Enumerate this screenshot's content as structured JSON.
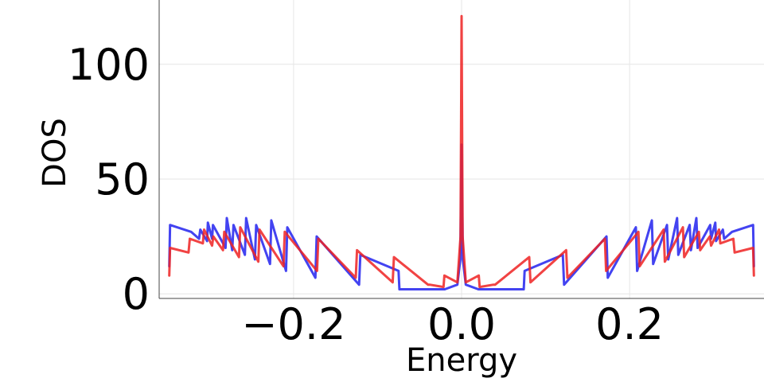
{
  "chart_data": {
    "type": "line",
    "title": "",
    "xlabel": "Energy",
    "ylabel": "DOS",
    "xlim": [
      -0.36,
      0.36
    ],
    "ylim": [
      -2,
      128
    ],
    "xticks": [
      -0.2,
      0.0,
      0.2
    ],
    "xtick_labels": [
      "−0.2",
      "0.0",
      "0.2"
    ],
    "yticks": [
      0,
      50,
      100
    ],
    "ytick_labels": [
      "0",
      "50",
      "100"
    ],
    "grid": true,
    "legend": "none",
    "colors": {
      "series_a": "#2222ee",
      "series_b": "#ee2222"
    },
    "series": [
      {
        "color": "#2222ee",
        "x": [
          -0.348,
          -0.347,
          -0.322,
          -0.3125,
          -0.311,
          -0.303,
          -0.302,
          -0.297,
          -0.296,
          -0.281,
          -0.2795,
          -0.273,
          -0.2715,
          -0.258,
          -0.2565,
          -0.246,
          -0.2445,
          -0.228,
          -0.2265,
          -0.209,
          -0.2075,
          -0.174,
          -0.1725,
          -0.122,
          -0.1205,
          -0.075,
          -0.074,
          -0.0735,
          -0.02,
          -0.005,
          -0.0015,
          0.0,
          0.0015,
          0.005,
          0.02,
          0.0735,
          0.074,
          0.075,
          0.1205,
          0.122,
          0.1725,
          0.174,
          0.2075,
          0.209,
          0.2265,
          0.228,
          0.2445,
          0.246,
          0.2565,
          0.258,
          0.2715,
          0.273,
          0.2795,
          0.281,
          0.296,
          0.297,
          0.302,
          0.303,
          0.311,
          0.3125,
          0.322,
          0.347,
          0.348
        ],
        "y": [
          12,
          30,
          27,
          24,
          28,
          23,
          31,
          24,
          30,
          20,
          33,
          19,
          30,
          17,
          33,
          15,
          30,
          13,
          32,
          10,
          29,
          7,
          25,
          4,
          17,
          10,
          2,
          2,
          2,
          4,
          15,
          65,
          15,
          4,
          2,
          2,
          2,
          10,
          17,
          4,
          25,
          7,
          29,
          10,
          32,
          13,
          30,
          15,
          33,
          17,
          30,
          19,
          33,
          20,
          30,
          24,
          31,
          23,
          28,
          24,
          27,
          30,
          12
        ]
      },
      {
        "color": "#ee2222",
        "x": [
          -0.348,
          -0.347,
          -0.325,
          -0.3235,
          -0.308,
          -0.3065,
          -0.297,
          -0.2955,
          -0.284,
          -0.2825,
          -0.265,
          -0.2635,
          -0.242,
          -0.2405,
          -0.212,
          -0.2105,
          -0.172,
          -0.1705,
          -0.126,
          -0.1245,
          -0.082,
          -0.0805,
          -0.04,
          -0.038,
          -0.0215,
          -0.0205,
          -0.005,
          -0.0012,
          0.0,
          0.0012,
          0.005,
          0.0205,
          0.0215,
          0.038,
          0.04,
          0.0805,
          0.082,
          0.1245,
          0.126,
          0.1705,
          0.172,
          0.2105,
          0.212,
          0.2405,
          0.242,
          0.2635,
          0.265,
          0.2825,
          0.284,
          0.2955,
          0.297,
          0.3065,
          0.308,
          0.3235,
          0.325,
          0.347,
          0.348
        ],
        "y": [
          8,
          20,
          18,
          24,
          22,
          28,
          21,
          25,
          19,
          27,
          16,
          29,
          14,
          28,
          12,
          27,
          10,
          24,
          7,
          19,
          5,
          16,
          4,
          4,
          3,
          8,
          5,
          25,
          121,
          25,
          5,
          8,
          3,
          4,
          4,
          16,
          5,
          19,
          7,
          24,
          10,
          27,
          12,
          28,
          14,
          29,
          16,
          27,
          19,
          25,
          21,
          28,
          22,
          24,
          18,
          20,
          8
        ]
      }
    ]
  }
}
